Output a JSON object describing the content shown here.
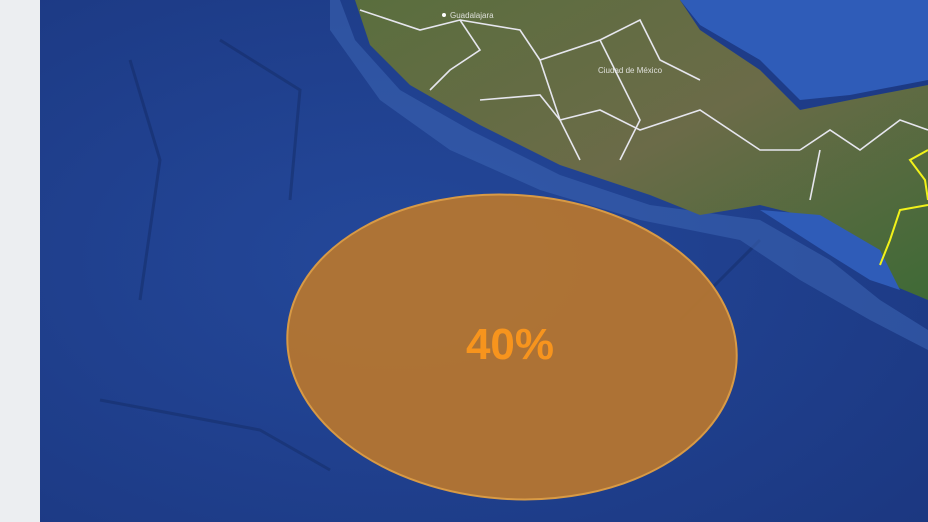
{
  "map": {
    "probability_label": "40%",
    "probability": 40,
    "cities": [
      {
        "name": "Guadalajara"
      },
      {
        "name": "Ciudad de México"
      }
    ],
    "colors": {
      "ocean": "#1f3f8c",
      "land": "#4d6a3a",
      "outlook_area": "#b8762e",
      "label": "#f7941d",
      "borders": "#e6e6ee",
      "highlight_border": "#f2f21a"
    }
  }
}
